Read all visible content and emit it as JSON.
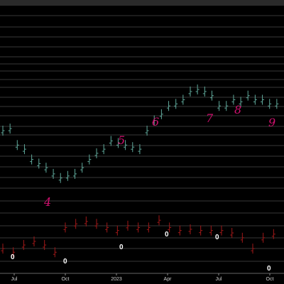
{
  "chart_data": [
    {
      "type": "ohlc-close",
      "color": "#5fa89a",
      "ylim": [
        0,
        100
      ],
      "values": [
        40,
        41,
        33,
        31,
        26,
        24,
        22,
        19,
        17,
        18,
        19,
        22,
        26,
        29,
        31,
        35,
        34,
        33,
        32,
        31,
        40,
        45,
        48,
        52,
        53,
        55,
        59,
        60,
        59,
        57,
        52,
        52,
        55,
        54,
        57,
        55,
        55,
        53,
        53
      ],
      "annotations": [
        "4",
        "5",
        "6",
        "7",
        "8",
        "9"
      ]
    },
    {
      "type": "ohlc-close",
      "color": "#a01818",
      "ylim": [
        0,
        100
      ],
      "values": [
        41,
        35,
        47,
        53,
        47,
        35,
        76,
        82,
        86,
        82,
        76,
        71,
        79,
        76,
        76,
        88,
        76,
        71,
        73,
        71,
        71,
        71,
        67,
        59,
        41,
        59,
        65
      ],
      "annotations": [
        "0",
        "0",
        "0",
        "0",
        "0",
        "0"
      ],
      "xtick_labels": [
        "Jul",
        "Oct",
        "2023",
        "Apr",
        "Jul",
        "Oct"
      ]
    }
  ]
}
